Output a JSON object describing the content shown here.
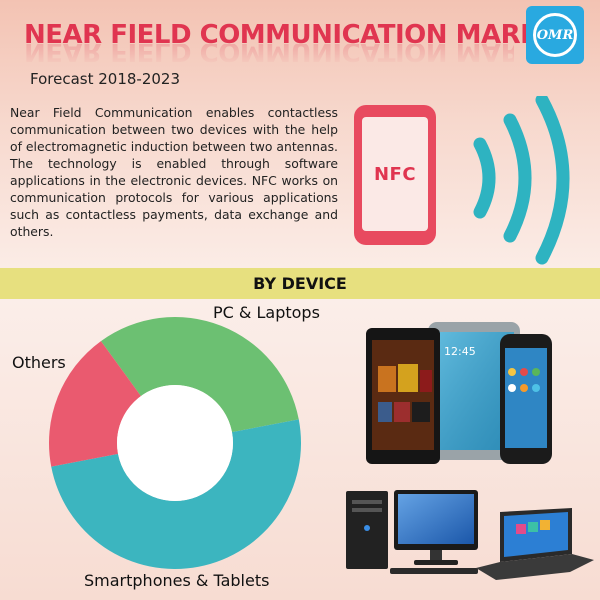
{
  "header": {
    "title": "NEAR FIELD COMMUNICATION MARKET",
    "forecast": "Forecast 2018-2023",
    "logo_text": "OMR"
  },
  "intro": {
    "description": "Near Field Communication enables contactless communication between two devices with the help of electromagnetic induction between two antennas. The technology is enabled through software applications in the electronic devices. NFC works on communication protocols for various applications such as contactless payments, data exchange and others.",
    "icon_label": "NFC",
    "icon": "nfc-phone-icon"
  },
  "section": {
    "title": "BY DEVICE"
  },
  "chart_data": {
    "type": "pie",
    "categories": [
      "PC & Laptops",
      "Smartphones & Tablets",
      "Others"
    ],
    "values": [
      32,
      50,
      18
    ],
    "colors": [
      "#6cc072",
      "#3cb5bf",
      "#ea5a6f"
    ],
    "donut": true
  },
  "colors": {
    "title": "#e03550",
    "accent_teal": "#2eb3c1",
    "band": "#e7e07f",
    "logo": "#29a9e0"
  }
}
